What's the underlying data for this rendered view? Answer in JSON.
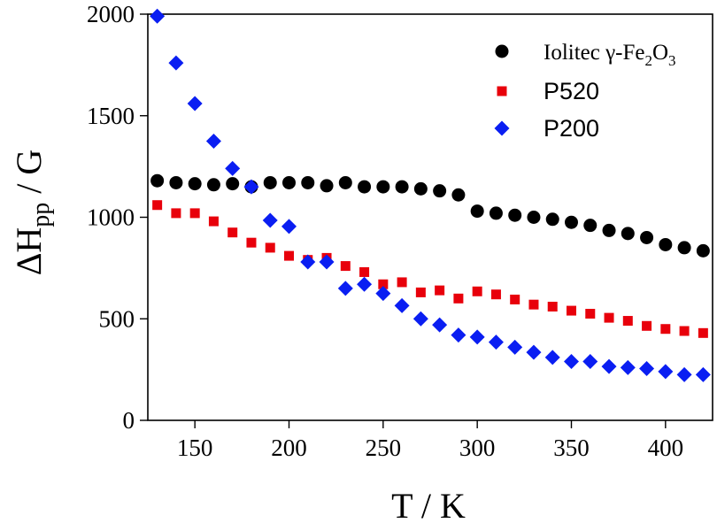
{
  "chart_data": {
    "type": "scatter",
    "xlabel": "T / K",
    "ylabel": {
      "main": "ΔH",
      "sub": "pp",
      "rest": " / G"
    },
    "xlim": [
      125,
      425
    ],
    "ylim": [
      0,
      2000
    ],
    "xticks": [
      150,
      200,
      250,
      300,
      350,
      400
    ],
    "yticks": [
      0,
      500,
      1000,
      1500,
      2000
    ],
    "grid": false,
    "legend_position": "top-right",
    "series": [
      {
        "name": "Iolitec γ-Fe2O3",
        "legend_parts": {
          "text": "Iolitec γ-Fe",
          "sub1": "2",
          "mid": "O",
          "sub2": "3"
        },
        "marker": "circle",
        "color": "#000000",
        "x": [
          130,
          140,
          150,
          160,
          170,
          180,
          190,
          200,
          210,
          220,
          230,
          240,
          250,
          260,
          270,
          280,
          290,
          300,
          310,
          320,
          330,
          340,
          350,
          360,
          370,
          380,
          390,
          400,
          410,
          420
        ],
        "y": [
          1180,
          1170,
          1165,
          1160,
          1165,
          1150,
          1170,
          1170,
          1170,
          1155,
          1170,
          1150,
          1150,
          1150,
          1140,
          1130,
          1110,
          1030,
          1020,
          1010,
          1000,
          990,
          975,
          960,
          935,
          920,
          900,
          865,
          850,
          835
        ]
      },
      {
        "name": "P520",
        "marker": "square",
        "color": "#e8000b",
        "x": [
          130,
          140,
          150,
          160,
          170,
          180,
          190,
          200,
          210,
          220,
          230,
          240,
          250,
          260,
          270,
          280,
          290,
          300,
          310,
          320,
          330,
          340,
          350,
          360,
          370,
          380,
          390,
          400,
          410,
          420
        ],
        "y": [
          1060,
          1020,
          1020,
          980,
          925,
          875,
          850,
          810,
          790,
          800,
          760,
          730,
          670,
          680,
          630,
          640,
          600,
          635,
          620,
          595,
          570,
          560,
          540,
          525,
          505,
          490,
          465,
          450,
          440,
          430
        ]
      },
      {
        "name": "P200",
        "marker": "diamond",
        "color": "#0a1ef2",
        "x": [
          130,
          140,
          150,
          160,
          170,
          180,
          190,
          200,
          210,
          220,
          230,
          240,
          250,
          260,
          270,
          280,
          290,
          300,
          310,
          320,
          330,
          340,
          350,
          360,
          370,
          380,
          390,
          400,
          410,
          420
        ],
        "y": [
          1990,
          1760,
          1560,
          1375,
          1240,
          1150,
          985,
          955,
          780,
          780,
          650,
          670,
          625,
          565,
          500,
          470,
          420,
          410,
          385,
          360,
          335,
          310,
          290,
          290,
          265,
          260,
          255,
          240,
          225,
          225
        ]
      }
    ]
  }
}
